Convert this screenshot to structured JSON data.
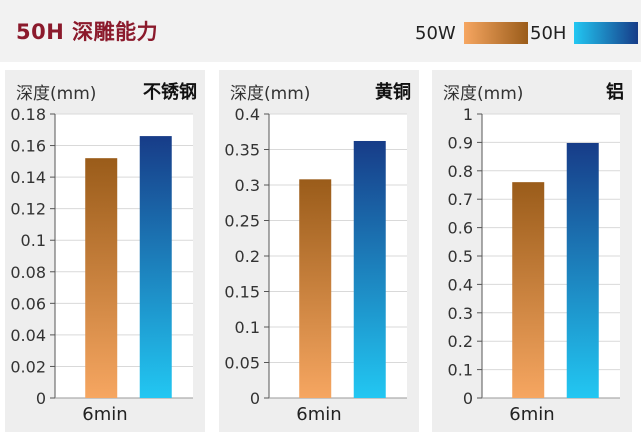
{
  "header": {
    "title": "50H 深雕能力",
    "legend": [
      {
        "label": "50W",
        "color_light": "#f6a661",
        "color_dark": "#9a5c1a"
      },
      {
        "label": "50H",
        "color_light": "#22c7f2",
        "color_dark": "#173c88"
      }
    ]
  },
  "chart_data": [
    {
      "type": "bar",
      "title": "不锈钢",
      "ylabel": "深度(mm)",
      "categories": [
        "6min"
      ],
      "series": [
        {
          "name": "50W",
          "values": [
            0.152
          ]
        },
        {
          "name": "50H",
          "values": [
            0.166
          ]
        }
      ],
      "ylim": [
        0,
        0.18
      ],
      "yticks": [
        "0",
        "0.02",
        "0.04",
        "0.06",
        "0.08",
        "0.1",
        "0.12",
        "0.14",
        "0.16",
        "0.18"
      ],
      "grid": true
    },
    {
      "type": "bar",
      "title": "黄铜",
      "ylabel": "深度(mm)",
      "categories": [
        "6min"
      ],
      "series": [
        {
          "name": "50W",
          "values": [
            0.308
          ]
        },
        {
          "name": "50H",
          "values": [
            0.362
          ]
        }
      ],
      "ylim": [
        0,
        0.4
      ],
      "yticks": [
        "0",
        "0.05",
        "0.1",
        "0.15",
        "0.2",
        "0.25",
        "0.3",
        "0.35",
        "0.4"
      ],
      "grid": true
    },
    {
      "type": "bar",
      "title": "铝",
      "ylabel": "深度(mm)",
      "categories": [
        "6min"
      ],
      "series": [
        {
          "name": "50W",
          "values": [
            0.76
          ]
        },
        {
          "name": "50H",
          "values": [
            0.898
          ]
        }
      ],
      "ylim": [
        0,
        1
      ],
      "yticks": [
        "0",
        "0.1",
        "0.2",
        "0.3",
        "0.4",
        "0.5",
        "0.6",
        "0.7",
        "0.8",
        "0.9",
        "1"
      ],
      "grid": true
    }
  ]
}
